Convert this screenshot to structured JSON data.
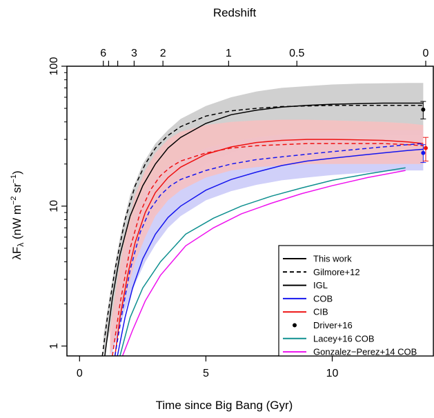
{
  "chart_data": {
    "type": "line",
    "xlabel": "Time since Big Bang (Gyr)",
    "ylabel": "λFλ (nW m⁻² sr⁻¹)",
    "ylabel_parts": {
      "lambda": "λF",
      "sub": "λ",
      "open": " (nW m",
      "exp1": "−2",
      "mid": " sr",
      "exp2": "−1",
      "close": ")"
    },
    "top_axis_label": "Redshift",
    "xlim": [
      -0.5,
      14
    ],
    "ylim": [
      0.85,
      100
    ],
    "y_scale": "log",
    "x_ticks": [
      0,
      5,
      10
    ],
    "y_ticks": [
      1,
      10,
      100
    ],
    "top_ticks": [
      {
        "label": "6",
        "t": 0.94
      },
      {
        "label": "",
        "t": 1.15
      },
      {
        "label": "",
        "t": 1.51
      },
      {
        "label": "3",
        "t": 2.16
      },
      {
        "label": "2",
        "t": 3.3
      },
      {
        "label": "1",
        "t": 5.9
      },
      {
        "label": "0.5",
        "t": 8.6
      },
      {
        "label": "0",
        "t": 13.7
      }
    ],
    "bands": [
      {
        "name": "IGL",
        "color": "#c8c8c8",
        "x": [
          0.95,
          1.3,
          1.6,
          2.0,
          2.5,
          3.0,
          3.5,
          4.0,
          5.0,
          6.0,
          7.0,
          8.0,
          9.0,
          10.0,
          11.0,
          12.0,
          13.0,
          13.6
        ],
        "lower": [
          0.85,
          1.5,
          2.5,
          4.0,
          6.5,
          9.0,
          12.0,
          15.0,
          20.0,
          24.0,
          27.0,
          29.0,
          30.0,
          31.0,
          31.5,
          32.0,
          32.0,
          32.0
        ],
        "upper": [
          1.2,
          3.0,
          6.0,
          12.0,
          20.0,
          28.0,
          35.0,
          42.0,
          52.0,
          60.0,
          66.0,
          70.0,
          72.0,
          74.0,
          75.0,
          75.5,
          76.0,
          76.0
        ]
      },
      {
        "name": "COB",
        "color": "#c8c8f8",
        "x": [
          1.25,
          1.5,
          1.8,
          2.2,
          2.6,
          3.0,
          3.5,
          4.0,
          5.0,
          6.0,
          7.0,
          8.0,
          9.0,
          10.0,
          11.0,
          12.0,
          13.0,
          13.6
        ],
        "lower": [
          0.85,
          1.2,
          1.8,
          2.8,
          4.0,
          5.3,
          7.0,
          8.5,
          11.0,
          12.8,
          14.2,
          15.3,
          16.0,
          16.7,
          17.2,
          17.7,
          18.0,
          18.0
        ],
        "upper": [
          1.2,
          2.5,
          5.0,
          9.0,
          13.0,
          16.0,
          19.5,
          22.0,
          26.0,
          29.0,
          31.0,
          32.5,
          33.5,
          34.0,
          34.5,
          35.0,
          35.0,
          35.0
        ]
      },
      {
        "name": "CIB",
        "color": "#f8c0c0",
        "x": [
          1.2,
          1.5,
          1.8,
          2.2,
          2.6,
          3.0,
          3.5,
          4.0,
          5.0,
          6.0,
          7.0,
          8.0,
          9.0,
          10.0,
          11.0,
          12.0,
          13.0,
          13.6
        ],
        "lower": [
          0.85,
          1.3,
          2.2,
          4.0,
          6.0,
          8.5,
          11.0,
          13.0,
          16.0,
          18.0,
          19.0,
          19.5,
          20.0,
          20.0,
          20.0,
          20.0,
          20.0,
          20.0
        ],
        "upper": [
          1.3,
          3.0,
          6.0,
          12.0,
          18.0,
          24.0,
          30.0,
          34.0,
          38.0,
          40.0,
          41.0,
          41.5,
          41.5,
          41.0,
          40.5,
          40.0,
          39.0,
          38.0
        ]
      }
    ],
    "series": [
      {
        "name": "This work",
        "color": "#000000",
        "dash": "solid",
        "x": [
          1.0,
          1.3,
          1.6,
          2.0,
          2.5,
          3.0,
          3.5,
          4.0,
          5.0,
          6.0,
          7.0,
          8.0,
          9.0,
          10.0,
          11.0,
          12.0,
          13.0,
          13.6
        ],
        "y": [
          0.85,
          2.2,
          4.5,
          8.5,
          14.0,
          20.0,
          26.0,
          31.0,
          39.0,
          45.0,
          48.5,
          51.0,
          52.5,
          53.5,
          54.0,
          54.5,
          54.5,
          54.5
        ]
      },
      {
        "name": "Gilmore+12",
        "color": "#000000",
        "dash": "dash",
        "x": [
          0.9,
          1.1,
          1.4,
          1.8,
          2.2,
          2.6,
          3.0,
          3.5,
          4.0,
          5.0,
          6.0,
          7.0,
          8.0,
          9.0,
          10.0,
          11.0,
          12.0,
          13.0,
          13.6
        ],
        "y": [
          0.85,
          1.6,
          3.5,
          8.0,
          14.0,
          20.0,
          26.0,
          32.0,
          37.0,
          44.0,
          48.0,
          50.0,
          51.5,
          52.0,
          52.5,
          52.5,
          52.5,
          52.5,
          52.5
        ]
      },
      {
        "name": "This work CIB",
        "color": "#ee1111",
        "dash": "solid",
        "x": [
          1.4,
          1.6,
          1.9,
          2.2,
          2.6,
          3.0,
          3.5,
          4.0,
          5.0,
          6.0,
          7.0,
          8.0,
          9.0,
          10.0,
          11.0,
          12.0,
          13.0,
          13.6
        ],
        "y": [
          0.85,
          1.6,
          3.2,
          5.5,
          9.0,
          12.5,
          16.0,
          19.0,
          23.5,
          26.5,
          28.5,
          29.5,
          30.0,
          30.0,
          29.8,
          29.5,
          28.8,
          28.0
        ]
      },
      {
        "name": "Gilmore+12 CIB",
        "color": "#ee1111",
        "dash": "dash",
        "x": [
          1.3,
          1.6,
          2.0,
          2.4,
          2.8,
          3.2,
          3.6,
          4.0,
          5.0,
          6.0,
          7.0,
          8.0,
          9.0,
          10.0,
          11.0,
          12.0,
          13.0,
          13.6
        ],
        "y": [
          0.85,
          2.0,
          5.0,
          9.0,
          13.0,
          16.5,
          19.0,
          21.0,
          24.0,
          26.0,
          27.0,
          27.5,
          28.0,
          28.0,
          28.0,
          28.0,
          27.5,
          27.0
        ]
      },
      {
        "name": "This work COB",
        "color": "#1515ee",
        "dash": "solid",
        "x": [
          1.5,
          1.8,
          2.1,
          2.5,
          3.0,
          3.5,
          4.0,
          5.0,
          6.0,
          7.0,
          8.0,
          9.0,
          10.0,
          11.0,
          12.0,
          13.0,
          13.6
        ],
        "y": [
          0.85,
          1.6,
          2.6,
          4.2,
          6.3,
          8.3,
          10.0,
          13.0,
          15.5,
          17.5,
          19.5,
          21.0,
          22.0,
          23.0,
          24.0,
          25.0,
          25.5
        ]
      },
      {
        "name": "Gilmore+12 COB",
        "color": "#1515ee",
        "dash": "dash",
        "x": [
          1.4,
          1.7,
          2.0,
          2.4,
          2.8,
          3.2,
          3.6,
          4.0,
          5.0,
          6.0,
          7.0,
          8.0,
          9.0,
          10.0,
          11.0,
          12.0,
          13.0,
          13.6
        ],
        "y": [
          0.85,
          1.8,
          3.5,
          6.5,
          9.5,
          12.0,
          14.0,
          15.5,
          18.0,
          20.0,
          21.5,
          22.5,
          23.5,
          24.5,
          25.5,
          26.5,
          27.5,
          28.0
        ]
      },
      {
        "name": "Lacey+16 COB",
        "color": "#0e8f8f",
        "dash": "solid",
        "x": [
          1.6,
          2.0,
          2.5,
          3.2,
          4.2,
          5.3,
          6.4,
          7.6,
          8.8,
          10.0,
          11.4,
          12.9
        ],
        "y": [
          0.85,
          1.6,
          2.6,
          4.0,
          6.3,
          8.2,
          10.0,
          11.8,
          13.5,
          15.3,
          17.0,
          18.8
        ]
      },
      {
        "name": "Gonzalez−Perez+14 COB",
        "color": "#ee11ee",
        "dash": "solid",
        "x": [
          1.7,
          2.1,
          2.6,
          3.2,
          4.2,
          5.3,
          6.4,
          7.6,
          8.8,
          10.0,
          11.4,
          12.9
        ],
        "y": [
          0.85,
          1.3,
          2.1,
          3.2,
          5.2,
          7.0,
          8.8,
          10.5,
          12.3,
          14.0,
          16.0,
          18.0
        ]
      }
    ],
    "points": [
      {
        "name": "Driver+16 IGL",
        "color": "#000000",
        "x": 13.6,
        "y": 49,
        "ylo": 42,
        "yhi": 56
      },
      {
        "name": "Driver+16 COB",
        "color": "#1515ee",
        "x": 13.6,
        "y": 24,
        "ylo": 20.5,
        "yhi": 27.5
      },
      {
        "name": "Driver+16 CIB",
        "color": "#ee1111",
        "x": 13.7,
        "y": 26,
        "ylo": 21,
        "yhi": 31
      }
    ],
    "legend": {
      "position": "bottom-right",
      "items": [
        {
          "label": "This work",
          "kind": "line",
          "color": "#000000",
          "dash": "solid"
        },
        {
          "label": "Gilmore+12",
          "kind": "line",
          "color": "#000000",
          "dash": "dash"
        },
        {
          "label": "IGL",
          "kind": "line",
          "color": "#000000",
          "dash": "solid"
        },
        {
          "label": "COB",
          "kind": "line",
          "color": "#1515ee",
          "dash": "solid"
        },
        {
          "label": "CIB",
          "kind": "line",
          "color": "#ee1111",
          "dash": "solid"
        },
        {
          "label": "Driver+16",
          "kind": "point",
          "color": "#000000",
          "dash": "solid"
        },
        {
          "label": "Lacey+16 COB",
          "kind": "line",
          "color": "#0e8f8f",
          "dash": "solid"
        },
        {
          "label": "Gonzalez−Perez+14 COB",
          "kind": "line",
          "color": "#ee11ee",
          "dash": "solid"
        }
      ]
    }
  }
}
